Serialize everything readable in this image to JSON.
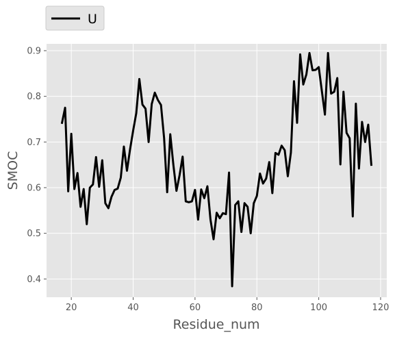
{
  "chart_data": {
    "type": "line",
    "xlabel": "Residue_num",
    "ylabel": "SMOC",
    "xlim": [
      12,
      122
    ],
    "ylim": [
      0.36,
      0.915
    ],
    "xticks": [
      20,
      40,
      60,
      80,
      100,
      120
    ],
    "yticks": [
      0.4,
      0.5,
      0.6,
      0.7,
      0.8,
      0.9
    ],
    "grid": true,
    "legend_placement": "top-left, above plot",
    "colors": {
      "background": "#e5e5e5",
      "grid": "#ffffff",
      "line": "#000000"
    },
    "series": [
      {
        "name": "U",
        "x": [
          17,
          18,
          19,
          20,
          21,
          22,
          23,
          24,
          25,
          26,
          27,
          28,
          29,
          30,
          31,
          32,
          33,
          34,
          35,
          36,
          37,
          38,
          39,
          40,
          41,
          42,
          43,
          44,
          45,
          46,
          47,
          48,
          49,
          50,
          51,
          52,
          53,
          54,
          55,
          56,
          57,
          58,
          59,
          60,
          61,
          62,
          63,
          64,
          65,
          66,
          67,
          68,
          69,
          70,
          71,
          72,
          73,
          74,
          75,
          76,
          77,
          78,
          79,
          80,
          81,
          82,
          83,
          84,
          85,
          86,
          87,
          88,
          89,
          90,
          91,
          92,
          93,
          94,
          95,
          96,
          97,
          98,
          99,
          100,
          101,
          102,
          103,
          104,
          105,
          106,
          107,
          108,
          109,
          110,
          111,
          112,
          113,
          114,
          115,
          116,
          117
        ],
        "values": [
          0.742,
          0.775,
          0.592,
          0.718,
          0.597,
          0.632,
          0.558,
          0.597,
          0.52,
          0.6,
          0.607,
          0.667,
          0.602,
          0.66,
          0.566,
          0.555,
          0.58,
          0.595,
          0.598,
          0.622,
          0.69,
          0.637,
          0.684,
          0.725,
          0.763,
          0.838,
          0.782,
          0.773,
          0.7,
          0.783,
          0.808,
          0.792,
          0.781,
          0.709,
          0.59,
          0.717,
          0.65,
          0.593,
          0.627,
          0.668,
          0.57,
          0.568,
          0.57,
          0.595,
          0.53,
          0.596,
          0.577,
          0.603,
          0.53,
          0.487,
          0.545,
          0.533,
          0.544,
          0.542,
          0.633,
          0.384,
          0.562,
          0.57,
          0.503,
          0.566,
          0.558,
          0.5,
          0.566,
          0.582,
          0.631,
          0.609,
          0.62,
          0.656,
          0.588,
          0.676,
          0.672,
          0.692,
          0.682,
          0.625,
          0.677,
          0.833,
          0.742,
          0.892,
          0.826,
          0.848,
          0.895,
          0.857,
          0.858,
          0.864,
          0.812,
          0.76,
          0.895,
          0.806,
          0.81,
          0.84,
          0.651,
          0.81,
          0.72,
          0.708,
          0.537,
          0.784,
          0.642,
          0.744,
          0.7,
          0.738,
          0.65
        ]
      }
    ]
  }
}
